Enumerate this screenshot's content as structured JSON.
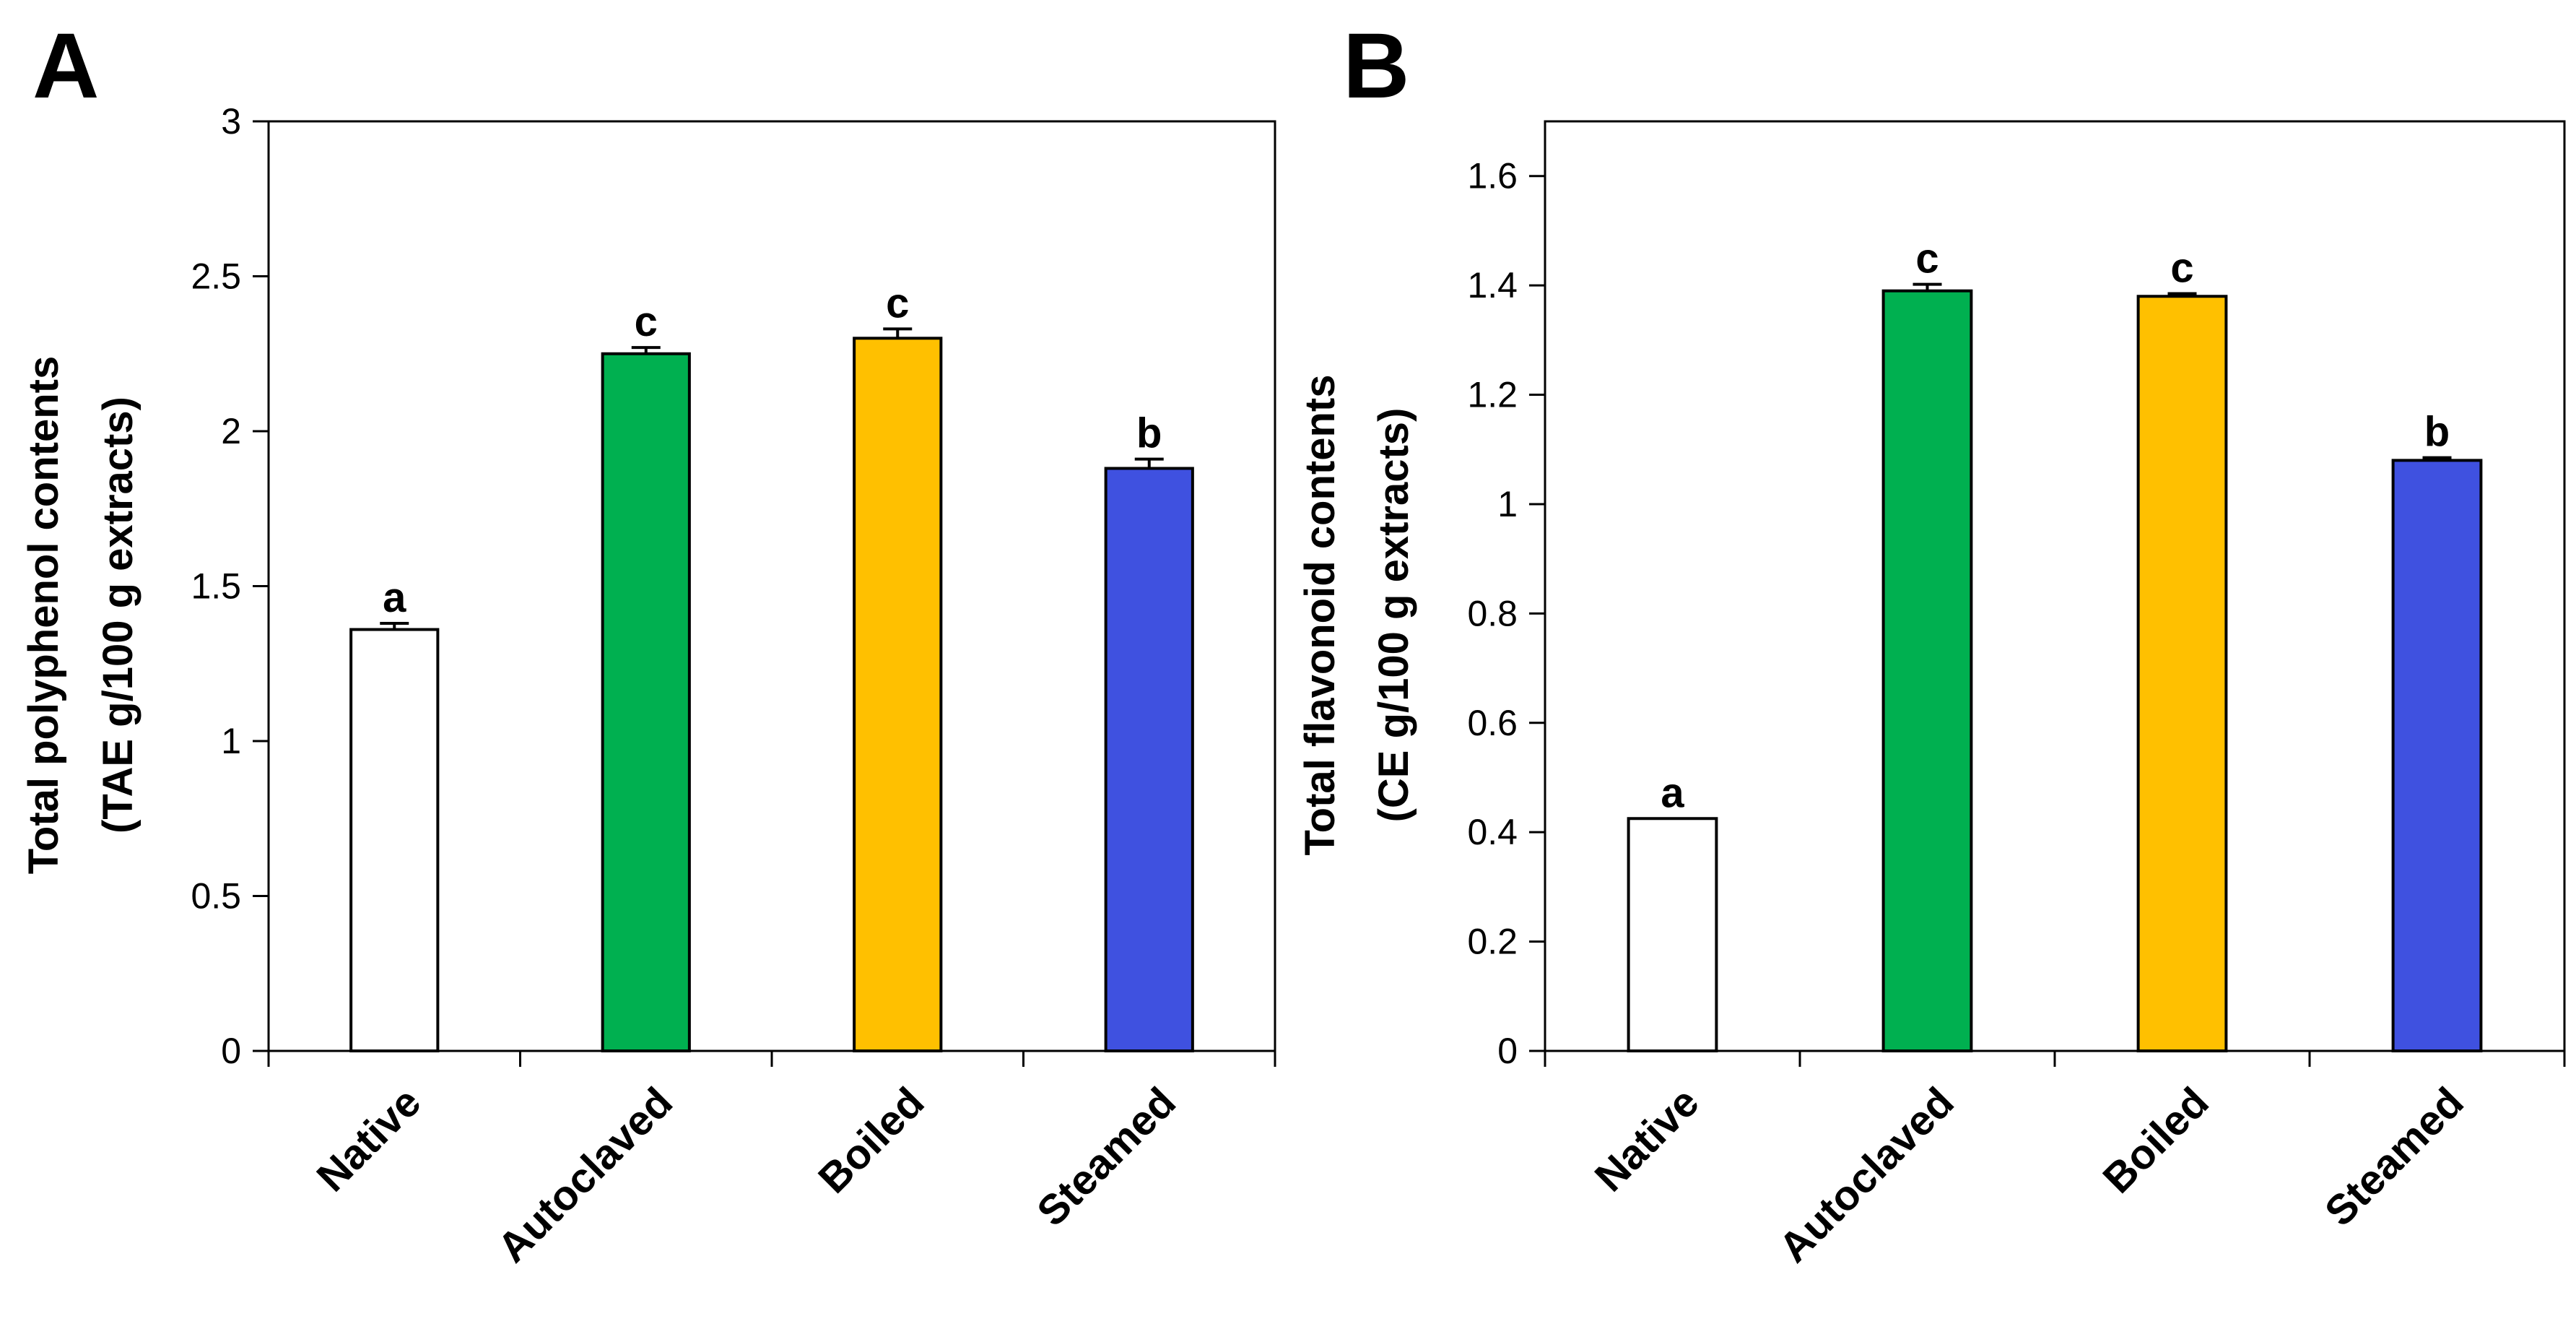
{
  "chart_data": [
    {
      "type": "bar",
      "panel": "A",
      "ylabel_lines": [
        "Total polyphenol contents",
        "(TAE g/100 g extracts)"
      ],
      "categories": [
        "Native",
        "Autoclaved",
        "Boiled",
        "Steamed"
      ],
      "values": [
        1.36,
        2.25,
        2.3,
        1.88
      ],
      "errors": [
        0.02,
        0.02,
        0.03,
        0.03
      ],
      "significance": [
        "a",
        "c",
        "c",
        "b"
      ],
      "colors": [
        "#FFFFFF",
        "#00B050",
        "#FFC000",
        "#3F51E0"
      ],
      "ylim": [
        0,
        3
      ],
      "yticks": [
        0,
        0.5,
        1,
        1.5,
        2,
        2.5,
        3
      ],
      "ytick_labels": [
        "0",
        "0.5",
        "1",
        "1.5",
        "2",
        "2.5",
        "3"
      ],
      "grid": false,
      "legend": false
    },
    {
      "type": "bar",
      "panel": "B",
      "ylabel_lines": [
        "Total flavonoid contents",
        "(CE g/100 g extracts)"
      ],
      "categories": [
        "Native",
        "Autoclaved",
        "Boiled",
        "Steamed"
      ],
      "values": [
        0.425,
        1.39,
        1.38,
        1.08
      ],
      "errors": [
        0.0,
        0.012,
        0.005,
        0.005
      ],
      "significance": [
        "a",
        "c",
        "c",
        "b"
      ],
      "colors": [
        "#FFFFFF",
        "#00B050",
        "#FFC000",
        "#3F51E0"
      ],
      "ylim": [
        0,
        1.7
      ],
      "yticks": [
        0,
        0.2,
        0.4,
        0.6,
        0.8,
        1,
        1.2,
        1.4,
        1.6
      ],
      "ytick_labels": [
        "0",
        "0.2",
        "0.4",
        "0.6",
        "0.8",
        "1",
        "1.2",
        "1.4",
        "1.6"
      ],
      "grid": false,
      "legend": false
    }
  ]
}
